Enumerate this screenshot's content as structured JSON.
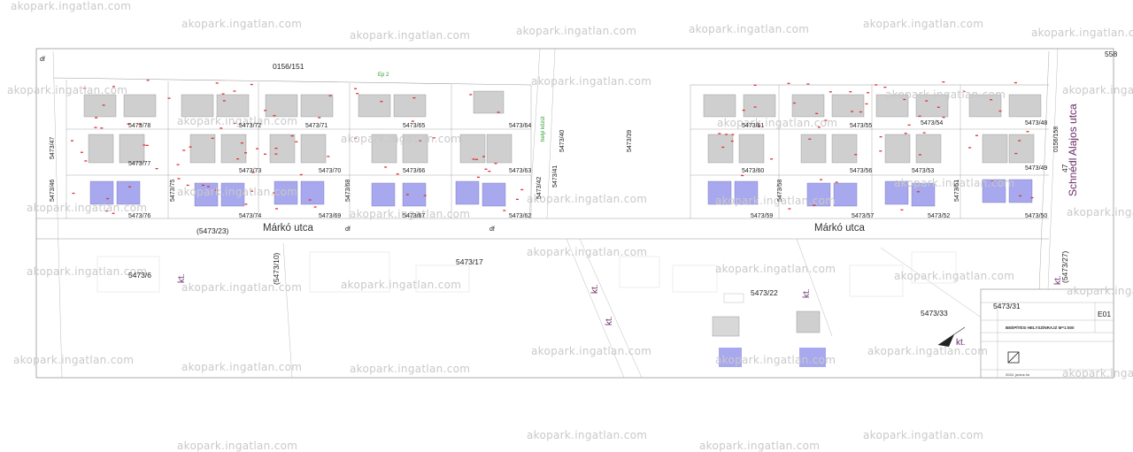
{
  "plan": {
    "parcels": {
      "p0156_151": "0156/151",
      "p5473_78": "5473/78",
      "p5473_72": "5473/72",
      "p5473_71": "5473/71",
      "p5473_65": "5473/65",
      "p5473_64": "5473/64",
      "p5473_77": "5473/77",
      "p5473_73": "5473/73",
      "p5473_70": "5473/70",
      "p5473_66": "5473/66",
      "p5473_63": "5473/63",
      "p5473_76": "5473/76",
      "p5473_74": "5473/74",
      "p5473_69": "5473/69",
      "p5473_67": "5473/67",
      "p5473_62": "5473/62",
      "p5473_47": "5473/47",
      "p5473_46": "5473/46",
      "p5473_75": "5473/75",
      "p5473_68": "5473/68",
      "p5473_41": "5473/41",
      "p5473_42": "5473/42",
      "p5473_40": "5473/40",
      "p5473_39": "5473/39",
      "p5473_61": "5473/61",
      "p5473_55": "5473/55",
      "p5473_54": "5473/54",
      "p5473_48": "5473/48",
      "p5473_60": "5473/60",
      "p5473_56": "5473/56",
      "p5473_53": "5473/53",
      "p5473_49": "5473/49",
      "p5473_59": "5473/59",
      "p5473_57": "5473/57",
      "p5473_52": "5473/52",
      "p5473_50": "5473/50",
      "p5473_58": "5473/58",
      "p5473_51": "5473/51",
      "p0156_158": "0156/158",
      "p5473_23": "(5473/23)",
      "p5473_17": "5473/17",
      "p5473_6": "5473/6",
      "p5473_10": "(5473/10)",
      "p5473_22": "5473/22",
      "p5473_31": "5473/31",
      "p5473_33": "5473/33",
      "p5473_27": "(5473/27)",
      "p558": "558",
      "p47": "47",
      "pdf": "df",
      "pdf2": "df",
      "pdf3": "df"
    },
    "streets": {
      "marko_left": "Márkó utca",
      "marko_right": "Márkó utca",
      "schned": "Schnédl Alajos utca"
    },
    "kt_labels": [
      "kt.",
      "kt.",
      "kt.",
      "kt.",
      "kt.",
      "kt."
    ],
    "green_labels": {
      "ep2": "Ep 2",
      "helyi": "helyi közút"
    },
    "wm_text": "akopark.ingatlan.com"
  },
  "title_block": {
    "sheet_no": "E01",
    "sheet_title": "BEÉPÍTÉSI HELYSZÍNRAJZ M=1:500",
    "date": "2024. június hó"
  },
  "colors": {
    "building": "#cfcfcf",
    "pool": "#a8a8ee",
    "outline": "#999999",
    "red": "#e03030",
    "purple": "#6a2a6a"
  }
}
